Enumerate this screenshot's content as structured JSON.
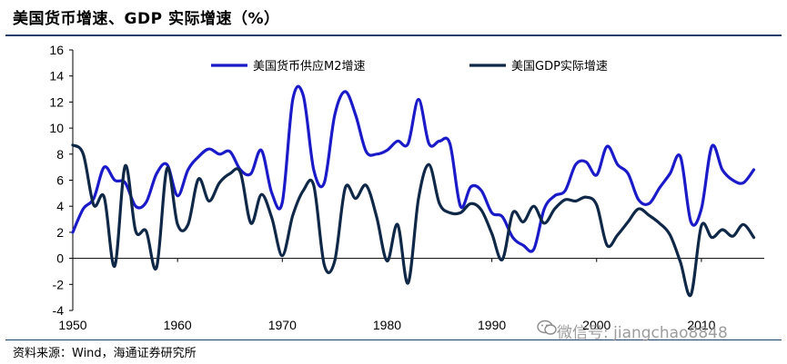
{
  "title": "美国货币增速、GDP 实际增速（%）",
  "source": "资料来源：Wind，海通证券研究所",
  "watermark": "微信号: jiangchao8848",
  "chart_data": {
    "type": "line",
    "title": "美国货币增速、GDP 实际增速（%）",
    "xlabel": "",
    "ylabel": "",
    "xlim": [
      1950,
      2016
    ],
    "ylim": [
      -4,
      16
    ],
    "x_ticks": [
      1950,
      1960,
      1970,
      1980,
      1990,
      2000,
      2010
    ],
    "y_ticks": [
      -4,
      -2,
      0,
      2,
      4,
      6,
      8,
      10,
      12,
      14,
      16
    ],
    "grid": false,
    "legend": "top",
    "series": [
      {
        "name": "美国货币供应M2增速",
        "color": "#1a1ac8",
        "x": [
          1950,
          1951,
          1952,
          1953,
          1954,
          1955,
          1956,
          1957,
          1958,
          1959,
          1960,
          1961,
          1962,
          1963,
          1964,
          1965,
          1966,
          1967,
          1968,
          1969,
          1970,
          1971,
          1972,
          1973,
          1974,
          1975,
          1976,
          1977,
          1978,
          1979,
          1980,
          1981,
          1982,
          1983,
          1984,
          1985,
          1986,
          1987,
          1988,
          1989,
          1990,
          1991,
          1992,
          1993,
          1994,
          1995,
          1996,
          1997,
          1998,
          1999,
          2000,
          2001,
          2002,
          2003,
          2004,
          2005,
          2006,
          2007,
          2008,
          2009,
          2010,
          2011,
          2012,
          2013,
          2014,
          2015
        ],
        "values": [
          2.0,
          3.8,
          4.6,
          7.0,
          6.0,
          5.8,
          4.0,
          4.3,
          6.5,
          7.2,
          4.8,
          6.8,
          7.8,
          8.4,
          8.0,
          8.2,
          6.8,
          6.5,
          8.3,
          5.0,
          4.3,
          12.2,
          12.5,
          6.8,
          5.8,
          11.0,
          12.8,
          11.0,
          8.2,
          8.0,
          8.3,
          9.0,
          8.8,
          12.2,
          8.8,
          9.0,
          8.8,
          4.0,
          5.5,
          5.2,
          3.5,
          3.2,
          1.6,
          1.0,
          0.7,
          3.8,
          4.8,
          5.2,
          7.2,
          7.4,
          6.4,
          8.6,
          7.2,
          6.5,
          4.5,
          4.2,
          5.4,
          6.5,
          7.8,
          2.8,
          3.8,
          8.6,
          6.8,
          6.0,
          5.8,
          6.8
        ]
      },
      {
        "name": "美国GDP实际增速",
        "color": "#0f2848",
        "x": [
          1950,
          1951,
          1952,
          1953,
          1954,
          1955,
          1956,
          1957,
          1958,
          1959,
          1960,
          1961,
          1962,
          1963,
          1964,
          1965,
          1966,
          1967,
          1968,
          1969,
          1970,
          1971,
          1972,
          1973,
          1974,
          1975,
          1976,
          1977,
          1978,
          1979,
          1980,
          1981,
          1982,
          1983,
          1984,
          1985,
          1986,
          1987,
          1988,
          1989,
          1990,
          1991,
          1992,
          1993,
          1994,
          1995,
          1996,
          1997,
          1998,
          1999,
          2000,
          2001,
          2002,
          2003,
          2004,
          2005,
          2006,
          2007,
          2008,
          2009,
          2010,
          2011,
          2012,
          2013,
          2014,
          2015
        ],
        "values": [
          8.7,
          8.0,
          4.1,
          4.7,
          -0.6,
          7.1,
          2.1,
          2.1,
          -0.7,
          6.9,
          2.6,
          2.6,
          6.1,
          4.4,
          5.8,
          6.5,
          6.6,
          2.7,
          4.9,
          3.1,
          0.2,
          3.3,
          5.2,
          5.6,
          -0.5,
          -0.2,
          5.4,
          4.6,
          5.6,
          3.2,
          -0.2,
          2.6,
          -1.9,
          4.6,
          7.2,
          4.2,
          3.5,
          3.5,
          4.2,
          3.7,
          1.9,
          -0.1,
          3.5,
          2.8,
          4.0,
          2.7,
          3.8,
          4.5,
          4.4,
          4.7,
          4.1,
          1.0,
          1.8,
          2.8,
          3.8,
          3.3,
          2.7,
          1.8,
          -0.3,
          -2.8,
          2.5,
          1.6,
          2.2,
          1.7,
          2.6,
          1.6
        ]
      }
    ]
  }
}
